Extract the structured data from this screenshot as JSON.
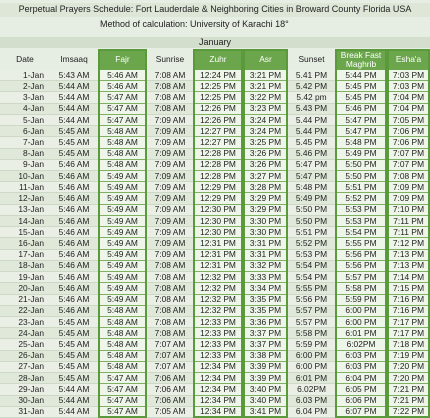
{
  "header": {
    "title": "Perpetual Prayers Schedule: Fort Lauderdale & Neighboring Cities in Broward County Florida  USA",
    "method": "Method of calculation: University of Karachi 18°"
  },
  "table": {
    "month": "January",
    "columns": [
      "Date",
      "Imsaaq",
      "Fajr",
      "Sunrise",
      "Zuhr",
      "Asr",
      "Sunset",
      "Break Fast Maghrib",
      "Esha'a"
    ],
    "rows": [
      [
        "1-Jan",
        "5:43 AM",
        "5:46 AM",
        "7:08 AM",
        "12:24 PM",
        "3:21 PM",
        "5.41 PM",
        "5:44 PM",
        "7:03 PM"
      ],
      [
        "2-Jan",
        "5:44 AM",
        "5:46 AM",
        "7:08 AM",
        "12:25 PM",
        "3:21 PM",
        "5.42 PM",
        "5:45 PM",
        "7:03 PM"
      ],
      [
        "3-Jan",
        "5:44 AM",
        "5:47 AM",
        "7:08 AM",
        "12:25 PM",
        "3:22 PM",
        "5.42 pm",
        "5:45 PM",
        "7:04 PM"
      ],
      [
        "4-Jan",
        "5:44 AM",
        "5:47 AM",
        "7:08 AM",
        "12:26 PM",
        "3:23 PM",
        "5.43 PM",
        "5:46 PM",
        "7:04 PM"
      ],
      [
        "5-Jan",
        "5:44 AM",
        "5:47 AM",
        "7:09 AM",
        "12:26 PM",
        "3:24 PM",
        "5.44 PM",
        "5:47 PM",
        "7:05 PM"
      ],
      [
        "6-Jan",
        "5:45 AM",
        "5:48 AM",
        "7:09 AM",
        "12:27 PM",
        "3:24 PM",
        "5.44 PM",
        "5:47 PM",
        "7:06 PM"
      ],
      [
        "7-Jan",
        "5:45 AM",
        "5:48 AM",
        "7:09 AM",
        "12:27 PM",
        "3:25 PM",
        "5.45 PM",
        "5:48 PM",
        "7:06 PM"
      ],
      [
        "8-Jan",
        "5:45 AM",
        "5:48 AM",
        "7:09 AM",
        "12:28 PM",
        "3:26 PM",
        "5.46 PM",
        "5:49 PM",
        "7:07 PM"
      ],
      [
        "9-Jan",
        "5:46 AM",
        "5:48 AM",
        "7:09 AM",
        "12:28 PM",
        "3:26 PM",
        "5:47 PM",
        "5:50 PM",
        "7:07 PM"
      ],
      [
        "10-Jan",
        "5:46 AM",
        "5:49 AM",
        "7:09 AM",
        "12:28 PM",
        "3:27 PM",
        "5:47 PM",
        "5:50 PM",
        "7:08 PM"
      ],
      [
        "11-Jan",
        "5:46 AM",
        "5:49 AM",
        "7:09 AM",
        "12:29 PM",
        "3:28 PM",
        "5:48 PM",
        "5:51 PM",
        "7:09 PM"
      ],
      [
        "12-Jan",
        "5:46 AM",
        "5:49 AM",
        "7:09 AM",
        "12:29 PM",
        "3:29 PM",
        "5:49 PM",
        "5:52 PM",
        "7:09 PM"
      ],
      [
        "13-Jan",
        "5:46 AM",
        "5:49 AM",
        "7:09 AM",
        "12:30 PM",
        "3:29 PM",
        "5:50 PM",
        "5:53 PM",
        "7:10 PM"
      ],
      [
        "14-Jan",
        "5:46 AM",
        "5:49 AM",
        "7:09 AM",
        "12:30 PM",
        "3:30 PM",
        "5:50 PM",
        "5:53 PM",
        "7:11 PM"
      ],
      [
        "15-Jan",
        "5:46 AM",
        "5:49 AM",
        "7:09 AM",
        "12:30 PM",
        "3:30 PM",
        "5:51 PM",
        "5:54 PM",
        "7:11 PM"
      ],
      [
        "16-Jan",
        "5:46 AM",
        "5:49 AM",
        "7:09 AM",
        "12:31 PM",
        "3:31 PM",
        "5:52 PM",
        "5:55 PM",
        "7:12 PM"
      ],
      [
        "17-Jan",
        "5:46 AM",
        "5:49 AM",
        "7:09 AM",
        "12:31 PM",
        "3:31 PM",
        "5:53 PM",
        "5:56 PM",
        "7:13 PM"
      ],
      [
        "18-Jan",
        "5:46 AM",
        "5:49 AM",
        "7:08 AM",
        "12:31 PM",
        "3:32 PM",
        "5:54 PM",
        "5:56 PM",
        "7:13 PM"
      ],
      [
        "19-Jan",
        "5:46 AM",
        "5:49 AM",
        "7:08 AM",
        "12:32 PM",
        "3:33 PM",
        "5:54 PM",
        "5:57 PM",
        "7:14 PM"
      ],
      [
        "20-Jan",
        "5:46 AM",
        "5:49 AM",
        "7:08 AM",
        "12:32 PM",
        "3:34 PM",
        "5:55 PM",
        "5:58 PM",
        "7:15 PM"
      ],
      [
        "21-Jan",
        "5:46 AM",
        "5:49 AM",
        "7:08 AM",
        "12:32 PM",
        "3:35 PM",
        "5:56 PM",
        "5:59 PM",
        "7:16 PM"
      ],
      [
        "22-Jan",
        "5:46 AM",
        "5:48 AM",
        "7:08 AM",
        "12:32 PM",
        "3:35 PM",
        "5:57 PM",
        "6:00 PM",
        "7:16 PM"
      ],
      [
        "23-Jan",
        "5:45 AM",
        "5:48 AM",
        "7:08 AM",
        "12:33 PM",
        "3:36 PM",
        "5:57 PM",
        "6:00 PM",
        "7:17 PM"
      ],
      [
        "24-Jan",
        "5:45 AM",
        "5:48 AM",
        "7:08 AM",
        "12:33 PM",
        "3:37 PM",
        "5:58 PM",
        "6:01 PM",
        "7:17 PM"
      ],
      [
        "25-Jan",
        "5:45 AM",
        "5:48 AM",
        "7:07 AM",
        "12:33 PM",
        "3:37 PM",
        "5:59 PM",
        "6:02PM",
        "7:18 PM"
      ],
      [
        "26-Jan",
        "5:45 AM",
        "5:48 AM",
        "7:07 AM",
        "12:33 PM",
        "3:38 PM",
        "6:00 PM",
        "6:03 PM",
        "7:19 PM"
      ],
      [
        "27-Jan",
        "5:45 AM",
        "5:48 AM",
        "7:07 AM",
        "12:34 PM",
        "3:39 PM",
        "6:00 PM",
        "6:03 PM",
        "7:20 PM"
      ],
      [
        "28-Jan",
        "5:45 AM",
        "5:47 AM",
        "7:06 AM",
        "12:34 PM",
        "3:39 PM",
        "6:01 PM",
        "6:04 PM",
        "7:20 PM"
      ],
      [
        "29-Jan",
        "5:44 AM",
        "5:47 AM",
        "7:06 AM",
        "12:34 PM",
        "3:40 PM",
        "6.02PM",
        "6:05 PM",
        "7:21 PM"
      ],
      [
        "30-Jan",
        "5:44 AM",
        "5:47 AM",
        "7:06 AM",
        "12:34 PM",
        "3:40 PM",
        "6.03 PM",
        "6:06 PM",
        "7:21 PM"
      ],
      [
        "31-Jan",
        "5:44 AM",
        "5:47 AM",
        "7:05 AM",
        "12:34 PM",
        "3:41 PM",
        "6.04 PM",
        "6:07 PM",
        "7:22 PM"
      ]
    ]
  }
}
